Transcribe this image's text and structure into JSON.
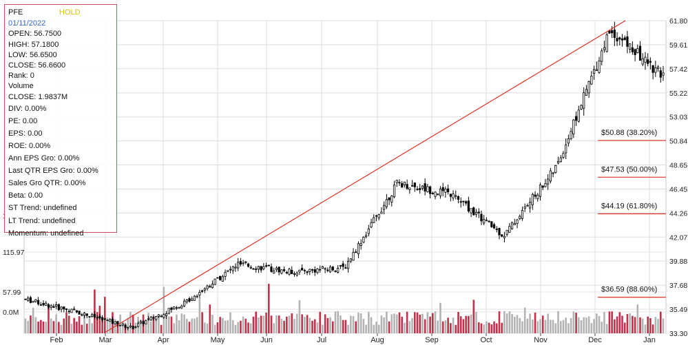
{
  "info_panel": {
    "symbol": "PFE",
    "rating": "HOLD",
    "date": "01/11/2022",
    "open": "OPEN: 56.7500",
    "high": "HIGH: 57.1800",
    "low": "LOW: 56.6500",
    "close": "CLOSE: 56.6600",
    "rank": "Rank: 0",
    "volume_label": "Volume",
    "volume_close": "CLOSE: 1.9837M",
    "div": "DIV: 0.00%",
    "pe": "PE: 0.00",
    "eps": "EPS: 0.00",
    "roe": "ROE: 0.00%",
    "ann_eps_gro": "Ann EPS Gro: 0.00%",
    "last_qtr_eps_gro": "Last QTR EPS Gro: 0.00%",
    "sales_gro_qtr": "Sales Gro QTR: 0.00%",
    "beta": "Beta: 0.00",
    "st_trend": "ST Trend: undefined",
    "lt_trend": "LT Trend: undefined",
    "momentum": "Momentum: undefined"
  },
  "colors": {
    "up_volume": "#c0314a",
    "down_volume": "#b3b3b3",
    "trendline": "#e03020",
    "fib_line": "#e03020",
    "grid": "#dddddd",
    "candle": "#000000",
    "date": "#3366cc",
    "rating": "#e0c000"
  },
  "chart_data": {
    "type": "candlestick",
    "title": "",
    "price_axis_labels": [
      "61.80",
      "59.61",
      "57.42",
      "55.22",
      "53.03",
      "50.84",
      "48.65",
      "46.45",
      "44.26",
      "42.07",
      "39.88",
      "37.68",
      "35.49",
      "33.30"
    ],
    "ylim": [
      33.3,
      61.8
    ],
    "volume_axis_labels": [
      "115.97",
      "57.99",
      "0.0M"
    ],
    "volume_ylim_millions": [
      0,
      174
    ],
    "partial_axis_label": "1",
    "x_tick_labels": [
      "Feb",
      "Mar",
      "Apr",
      "May",
      "Jun",
      "Jul",
      "Aug",
      "Sep",
      "Oct",
      "Nov",
      "Dec",
      "Jan"
    ],
    "grid": true,
    "trendline": {
      "start": {
        "month": "Mar",
        "price": 33.4
      },
      "end": {
        "month": "Dec",
        "price": 61.8
      }
    },
    "fibonacci_levels": [
      {
        "label": "$50.88 (38.20%)",
        "price": 50.88
      },
      {
        "label": "$47.53 (50.00%)",
        "price": 47.53
      },
      {
        "label": "$44.19 (61.80%)",
        "price": 44.19
      },
      {
        "label": "$36.59 (88.60%)",
        "price": 36.59
      }
    ],
    "price_path_approx": [
      {
        "month": "Jan",
        "close": 36.4
      },
      {
        "month": "Feb",
        "close": 35.2
      },
      {
        "month": "Mar",
        "close": 33.8
      },
      {
        "month": "Apr",
        "close": 36.1
      },
      {
        "month": "May",
        "close": 39.6
      },
      {
        "month": "Jun",
        "close": 38.9
      },
      {
        "month": "Jul",
        "close": 39.3
      },
      {
        "month": "Aug",
        "close": 47.0
      },
      {
        "month": "Sep",
        "close": 46.0
      },
      {
        "month": "Oct",
        "close": 42.2
      },
      {
        "month": "Nov",
        "close": 48.5
      },
      {
        "month": "Dec",
        "close": 61.0
      },
      {
        "month": "Jan",
        "close": 56.66
      }
    ]
  }
}
